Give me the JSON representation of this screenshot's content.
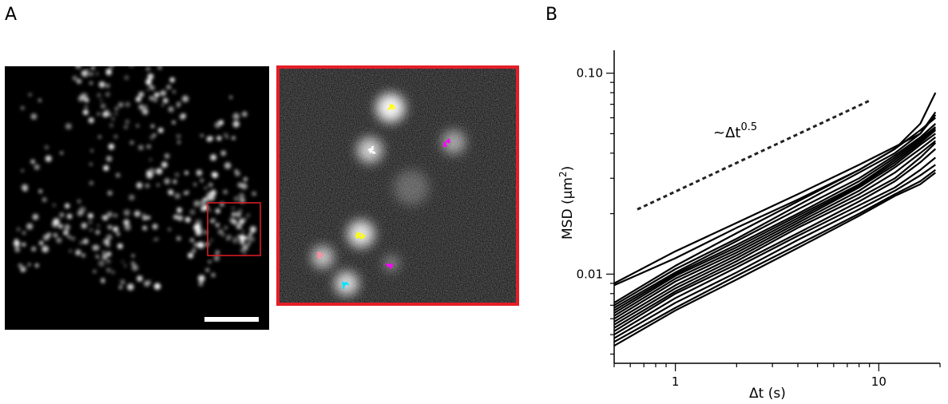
{
  "panels": {
    "a": {
      "label": "A"
    },
    "b": {
      "label": "B"
    }
  },
  "colors": {
    "inset_border": "#e41e26",
    "scalebar": "#ffffff",
    "track_yellow": "#ffff00",
    "track_magenta": "#ff00ff",
    "track_cyan": "#00e5ff",
    "track_pink": "#ff8fa0",
    "track_white": "#ffffff",
    "curve": "#000000"
  },
  "chart_data": {
    "type": "line",
    "scale": "log-log",
    "xlabel_main": "Δt",
    "xlabel_unit": "(s)",
    "ylabel_main": "MSD",
    "ylabel_unit_base": "(μm",
    "ylabel_unit_exp": "2",
    "ylabel_unit_close": ")",
    "xlim": [
      0.5,
      20
    ],
    "ylim": [
      0.0036,
      0.13
    ],
    "x_ticks": [
      {
        "value": 1,
        "label": "1"
      },
      {
        "value": 10,
        "label": "10"
      }
    ],
    "y_ticks": [
      {
        "value": 0.01,
        "label": "0.01"
      },
      {
        "value": 0.1,
        "label": "0.10"
      }
    ],
    "grid": false,
    "reference": {
      "name_base": "~Δt",
      "name_exp": "0.5",
      "style": "dashed",
      "x": [
        0.65,
        9.0
      ],
      "y": [
        0.021,
        0.073
      ]
    },
    "x": [
      0.5,
      1,
      2,
      4,
      8,
      12,
      16,
      19
    ],
    "series": [
      {
        "values": [
          0.009,
          0.013,
          0.018,
          0.025,
          0.035,
          0.043,
          0.05,
          0.062
        ]
      },
      {
        "values": [
          0.0088,
          0.012,
          0.017,
          0.0235,
          0.033,
          0.042,
          0.056,
          0.08
        ]
      },
      {
        "values": [
          0.0072,
          0.011,
          0.016,
          0.023,
          0.033,
          0.042,
          0.052,
          0.06
        ]
      },
      {
        "values": [
          0.007,
          0.0106,
          0.015,
          0.022,
          0.032,
          0.04,
          0.05,
          0.064
        ]
      },
      {
        "values": [
          0.0068,
          0.0102,
          0.0146,
          0.021,
          0.03,
          0.039,
          0.048,
          0.056
        ]
      },
      {
        "values": [
          0.0066,
          0.01,
          0.014,
          0.02,
          0.029,
          0.038,
          0.047,
          0.054
        ]
      },
      {
        "values": [
          0.0064,
          0.0098,
          0.0136,
          0.0195,
          0.028,
          0.037,
          0.046,
          0.053
        ]
      },
      {
        "values": [
          0.0062,
          0.0095,
          0.0132,
          0.019,
          0.0275,
          0.036,
          0.045,
          0.052
        ]
      },
      {
        "values": [
          0.006,
          0.0092,
          0.0128,
          0.0185,
          0.027,
          0.035,
          0.044,
          0.05
        ]
      },
      {
        "values": [
          0.0058,
          0.0088,
          0.0124,
          0.018,
          0.026,
          0.034,
          0.042,
          0.048
        ]
      },
      {
        "values": [
          0.0056,
          0.0085,
          0.012,
          0.0175,
          0.025,
          0.032,
          0.04,
          0.046
        ]
      },
      {
        "values": [
          0.0054,
          0.0082,
          0.0116,
          0.017,
          0.024,
          0.03,
          0.038,
          0.045
        ]
      },
      {
        "values": [
          0.0052,
          0.008,
          0.0112,
          0.016,
          0.023,
          0.029,
          0.036,
          0.042
        ]
      },
      {
        "values": [
          0.005,
          0.0076,
          0.0108,
          0.0155,
          0.022,
          0.027,
          0.033,
          0.038
        ]
      },
      {
        "values": [
          0.0048,
          0.0072,
          0.0102,
          0.0148,
          0.021,
          0.026,
          0.031,
          0.035
        ]
      },
      {
        "values": [
          0.0046,
          0.0068,
          0.0098,
          0.014,
          0.02,
          0.025,
          0.029,
          0.033
        ]
      },
      {
        "values": [
          0.0044,
          0.0066,
          0.0094,
          0.0135,
          0.0195,
          0.0245,
          0.028,
          0.032
        ]
      }
    ]
  }
}
